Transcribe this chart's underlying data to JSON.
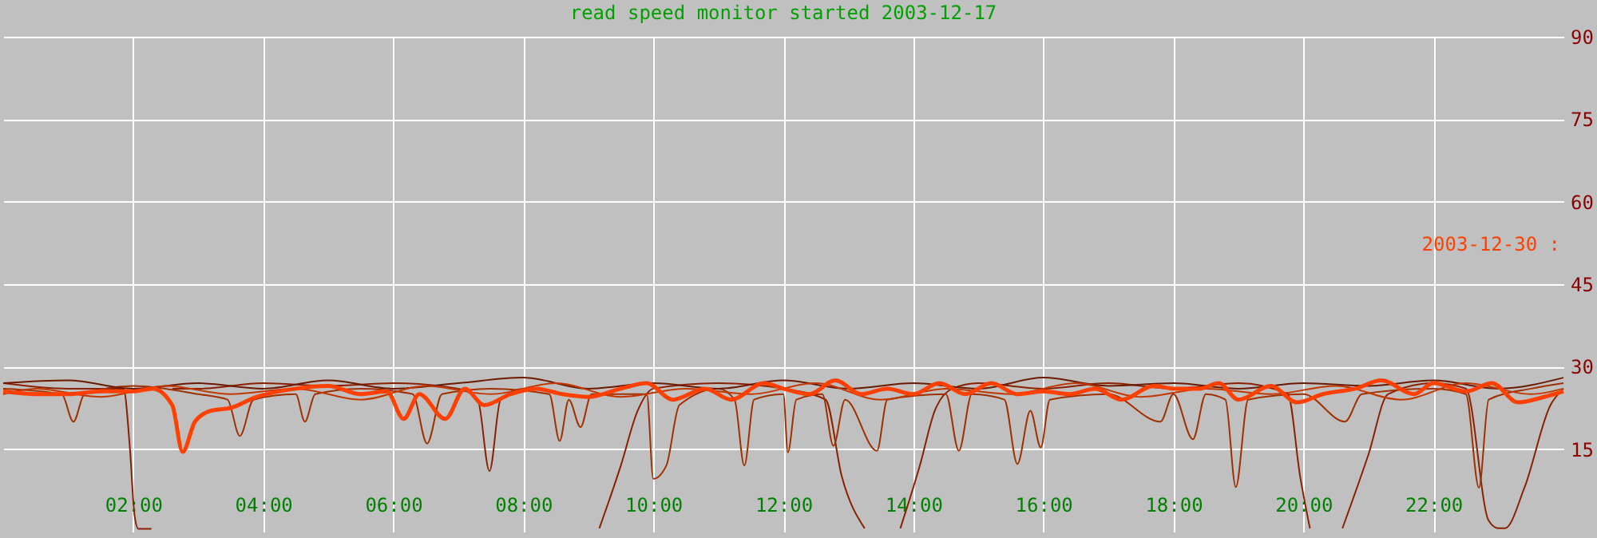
{
  "chart_data": {
    "type": "line",
    "title": "read speed monitor started 2003-12-17",
    "xlim": [
      0,
      24
    ],
    "xticks": [
      {
        "value": 2,
        "label": "02:00"
      },
      {
        "value": 4,
        "label": "04:00"
      },
      {
        "value": 6,
        "label": "06:00"
      },
      {
        "value": 8,
        "label": "08:00"
      },
      {
        "value": 10,
        "label": "10:00"
      },
      {
        "value": 12,
        "label": "12:00"
      },
      {
        "value": 14,
        "label": "14:00"
      },
      {
        "value": 16,
        "label": "16:00"
      },
      {
        "value": 18,
        "label": "18:00"
      },
      {
        "value": 20,
        "label": "20:00"
      },
      {
        "value": 22,
        "label": "22:00"
      }
    ],
    "ylim": [
      0,
      90
    ],
    "yticks": [
      15,
      30,
      45,
      60,
      75,
      90
    ],
    "grid": true,
    "legend": "right",
    "marker": "none",
    "line_style": "solid",
    "series": [
      {
        "color": "#8b2000",
        "x": [
          0,
          1,
          1.85,
          1.95,
          2.02,
          2.08,
          2.28,
          2.32,
          2.6,
          3,
          4,
          5,
          6,
          7,
          7.3,
          7.48,
          7.65,
          8,
          8.5,
          8.6,
          9.17,
          9.5,
          9.76,
          10,
          11,
          12,
          12.65,
          12.9,
          13.25,
          13.3,
          13.8,
          14.1,
          14.33,
          14.6,
          15,
          16,
          17,
          18,
          19,
          19.76,
          19.95,
          20.1,
          20.15,
          20.6,
          21,
          21.3,
          22,
          22.5,
          22.85,
          23.0,
          23.1,
          23.4,
          23.8,
          24
        ],
        "values": [
          27,
          26,
          26,
          15,
          3,
          0.5,
          0.5,
          null,
          26,
          26,
          27,
          26.5,
          27,
          26,
          24,
          11,
          24,
          26,
          25.5,
          null,
          0.6,
          12,
          22,
          26,
          27,
          26,
          24,
          10,
          0.6,
          null,
          0.6,
          12,
          22,
          26,
          27,
          26,
          27,
          26,
          27,
          25,
          10,
          0.6,
          null,
          0.6,
          14,
          25,
          27,
          26,
          2,
          0.6,
          0.6,
          8,
          23,
          26
        ]
      },
      {
        "color": "#a03000",
        "x": [
          0,
          0.9,
          1.08,
          1.25,
          2,
          3,
          3.45,
          3.64,
          3.85,
          4.5,
          4.64,
          4.8,
          5.5,
          6.3,
          6.52,
          6.75,
          7.5,
          8.4,
          8.56,
          8.7,
          8.88,
          9.05,
          9.9,
          10,
          10.2,
          10.4,
          11,
          11.25,
          11.4,
          11.55,
          12,
          12.07,
          12.2,
          12.6,
          12.77,
          12.95,
          13.44,
          13.6,
          14.5,
          14.7,
          14.9,
          15.4,
          15.6,
          15.8,
          15.96,
          16.1,
          17,
          17.8,
          18,
          18.3,
          18.5,
          18.8,
          18.96,
          19.15,
          20,
          20.64,
          20.9,
          22,
          22.5,
          22.7,
          22.85,
          23.5,
          24
        ],
        "values": [
          26,
          25,
          20,
          25,
          26.5,
          25,
          24,
          17.4,
          24,
          25,
          20,
          25,
          26,
          25,
          16,
          25,
          26,
          25,
          16.5,
          24,
          19,
          25,
          25,
          9.6,
          12,
          23,
          26,
          24,
          12,
          24,
          25,
          14.4,
          24,
          25,
          15.6,
          24,
          14.7,
          24,
          25,
          14.7,
          25,
          24,
          12.3,
          22,
          15.3,
          24,
          25,
          20,
          25,
          16.8,
          25,
          24,
          8.1,
          24,
          25,
          20,
          25,
          26,
          25,
          8,
          24,
          26,
          27
        ]
      },
      {
        "color": "#6b1a00",
        "x": [
          0,
          1,
          2,
          3,
          4,
          5,
          6,
          7,
          8,
          9,
          10,
          11,
          12,
          13,
          14,
          15,
          16,
          17,
          18,
          19,
          20,
          21,
          22,
          23,
          24
        ],
        "values": [
          27,
          27.5,
          26,
          27,
          26,
          27.5,
          26,
          27,
          28,
          26,
          27,
          26,
          27.5,
          26,
          27,
          26,
          28,
          26.5,
          27,
          26,
          27,
          26.5,
          27.5,
          26,
          28
        ]
      },
      {
        "color": "#c03800",
        "x": [
          0,
          0.5,
          1.5,
          2.5,
          3.5,
          4.5,
          5.5,
          6.5,
          7.5,
          8.5,
          9.5,
          10.5,
          11.5,
          12.5,
          13.5,
          14.5,
          15.5,
          16.5,
          17.5,
          18.5,
          19.5,
          20.5,
          21.5,
          22.5,
          23.5,
          24
        ],
        "values": [
          25,
          26,
          24.5,
          26.5,
          25,
          26,
          24,
          26.5,
          25,
          27,
          24.5,
          26,
          25,
          27,
          24,
          26,
          25,
          27,
          24.5,
          26,
          25,
          26.5,
          24,
          27,
          25,
          26
        ]
      },
      {
        "name": "2003-12-30 :",
        "color": "#ff4000",
        "x": [
          0,
          0.5,
          1,
          1.5,
          2,
          2.3,
          2.6,
          2.76,
          2.95,
          3.2,
          3.5,
          3.9,
          4.5,
          5,
          5.5,
          5.9,
          6.16,
          6.4,
          6.8,
          7.1,
          7.4,
          7.8,
          8.2,
          8.6,
          9,
          9.5,
          9.9,
          10.3,
          10.8,
          11.2,
          11.7,
          12,
          12.4,
          12.8,
          13.2,
          13.6,
          14,
          14.4,
          14.8,
          15.2,
          15.6,
          16,
          16.4,
          16.8,
          17.2,
          17.7,
          18,
          18.4,
          18.7,
          19,
          19.5,
          19.9,
          20.3,
          20.8,
          21.2,
          21.7,
          22,
          22.5,
          22.9,
          23.3,
          23.7,
          24
        ],
        "values": [
          25.5,
          25,
          25,
          25.5,
          25.5,
          26,
          23,
          14.5,
          20,
          22,
          22.5,
          24.5,
          26,
          26.5,
          25,
          25.5,
          20.5,
          25,
          20.5,
          26,
          23,
          25,
          26,
          25,
          24.5,
          26,
          27,
          24,
          26,
          24,
          27,
          26,
          25,
          27.5,
          25,
          26,
          25,
          27,
          25,
          27,
          25,
          25.5,
          25,
          26,
          24,
          26.5,
          26,
          26,
          27,
          24,
          26.5,
          23.5,
          25,
          26,
          27.5,
          25,
          27,
          25.5,
          27,
          23.5,
          24.5,
          25.5
        ]
      }
    ]
  }
}
